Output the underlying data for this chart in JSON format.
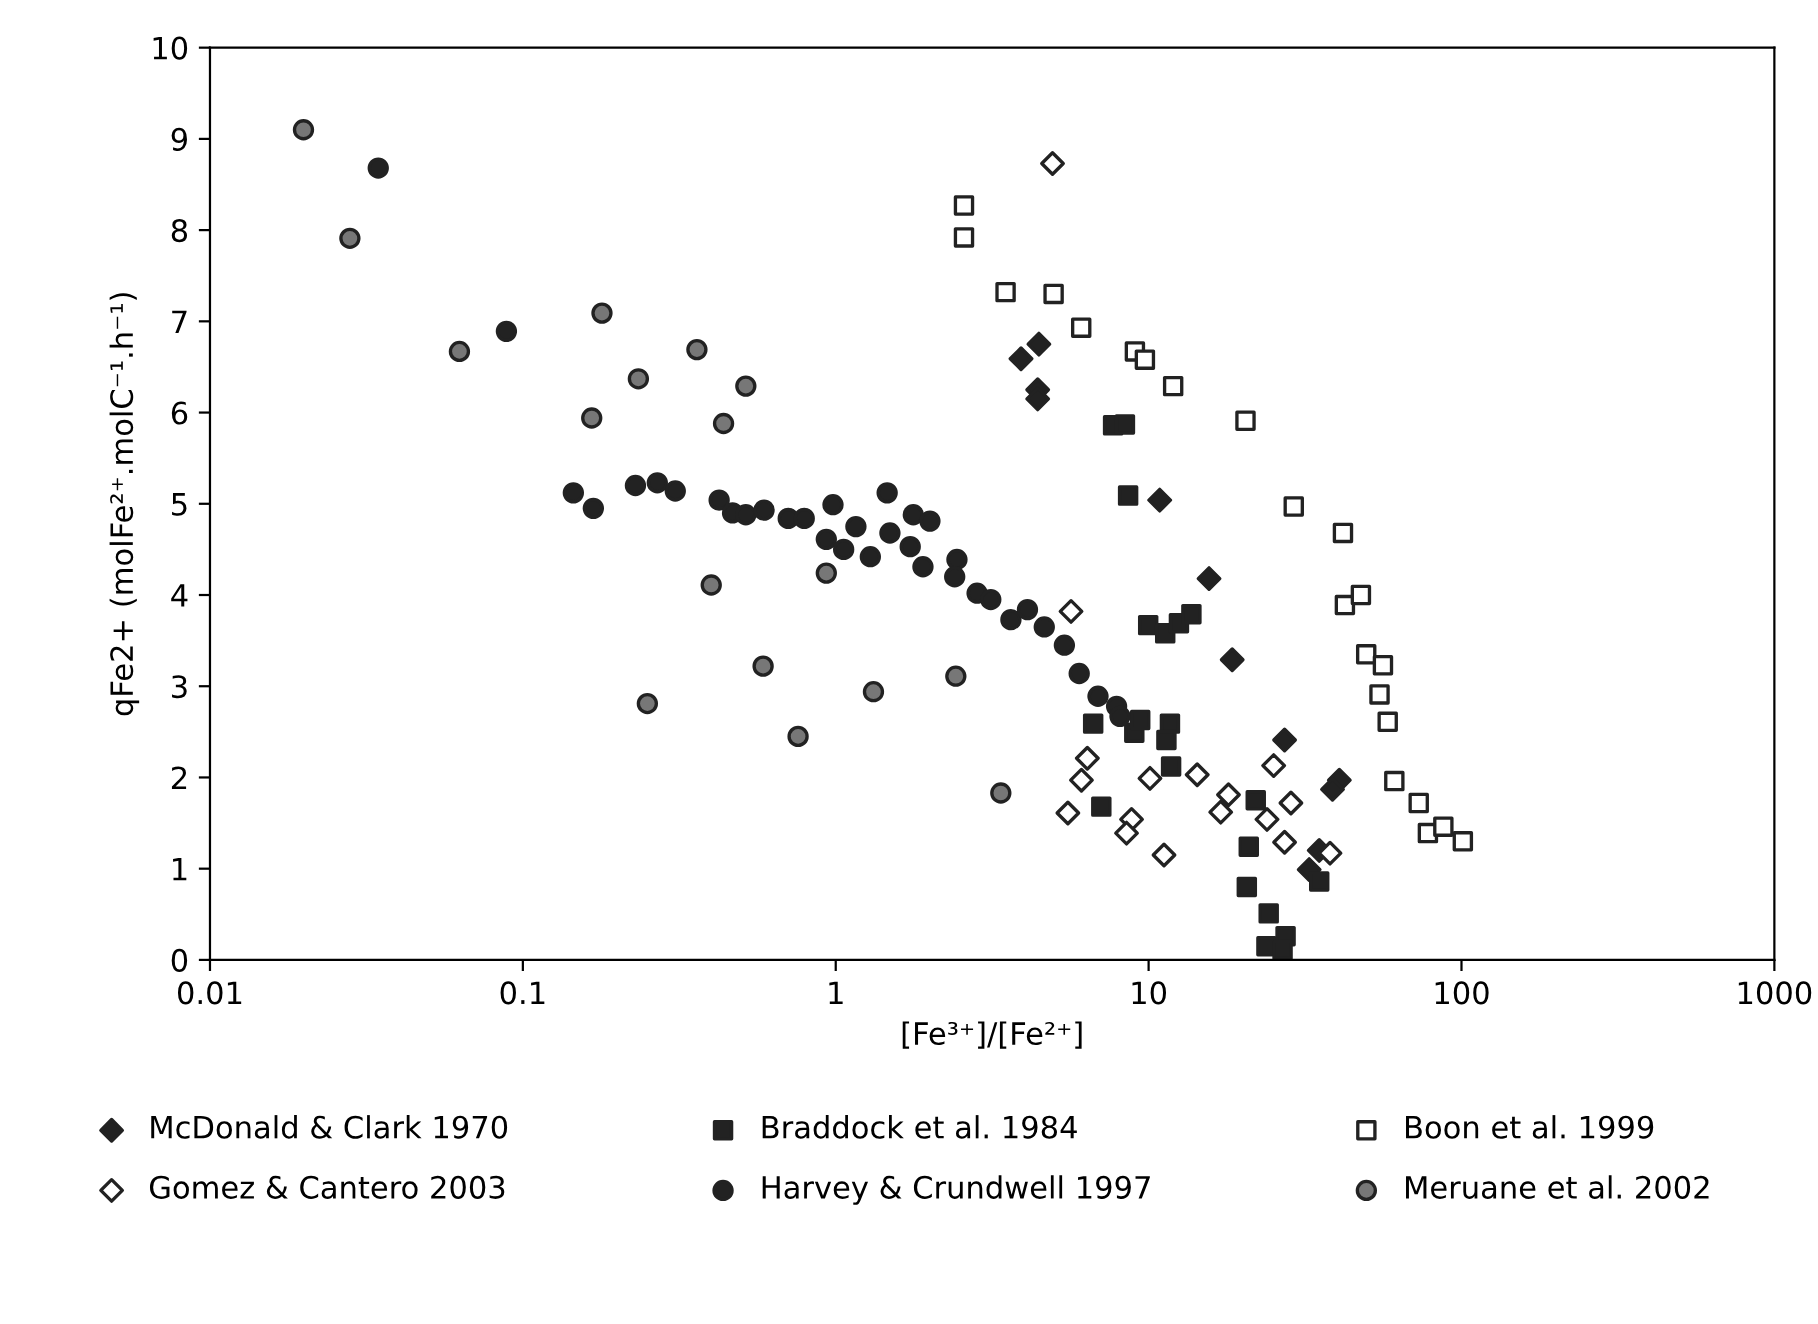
{
  "chart_data": {
    "type": "scatter",
    "xlabel": "[Fe³⁺]/[Fe²⁺]",
    "ylabel": "qFe2+ (molFe²⁺.molC⁻¹.h⁻¹)",
    "log": "x",
    "xlim": [
      0.01,
      1000
    ],
    "xticks": [
      0.01,
      0.1,
      1,
      10,
      100,
      1000
    ],
    "ylim": [
      0,
      10
    ],
    "yticks": [
      0,
      1,
      2,
      3,
      4,
      5,
      6,
      7,
      8,
      9,
      10
    ],
    "grid": false,
    "legend": "bottom",
    "series": [
      {
        "name": "McDonald & Clark 1970",
        "marker": "diamond",
        "color": "#222222",
        "x": [
          4.46,
          3.91,
          4.42,
          4.42,
          10.85,
          15.6,
          18.5,
          27.2,
          40.7,
          38.7,
          35.1,
          32.6
        ],
        "values": [
          6.75,
          6.59,
          6.25,
          6.15,
          5.04,
          4.18,
          3.29,
          2.41,
          1.97,
          1.87,
          1.2,
          0.99
        ]
      },
      {
        "name": "Braddock et al. 1984",
        "marker": "square",
        "color": "#222222",
        "x": [
          7.7,
          8.4,
          8.6,
          9.97,
          11.3,
          12.5,
          13.7,
          6.65,
          9.0,
          9.4,
          11.7,
          11.4,
          11.8,
          7.06,
          22.0,
          20.9,
          20.6,
          24.2,
          23.8,
          27.4,
          26.8,
          35.1
        ],
        "values": [
          5.86,
          5.87,
          5.09,
          3.67,
          3.58,
          3.69,
          3.79,
          2.59,
          2.49,
          2.63,
          2.59,
          2.41,
          2.12,
          1.68,
          1.75,
          1.24,
          0.8,
          0.51,
          0.15,
          0.26,
          0.11,
          0.86
        ]
      },
      {
        "name": "Boon et al. 1999",
        "marker": "square",
        "color": "#ffffff",
        "x": [
          2.57,
          2.57,
          3.49,
          4.97,
          6.09,
          9.04,
          9.73,
          11.98,
          20.4,
          29.1,
          41.8,
          42.4,
          47.7,
          49.6,
          56.1,
          54.7,
          58.1,
          61.0,
          73,
          78.1,
          87.5,
          101
        ],
        "values": [
          8.27,
          7.92,
          7.32,
          7.3,
          6.93,
          6.67,
          6.58,
          6.29,
          5.91,
          4.97,
          4.68,
          3.89,
          4.0,
          3.35,
          3.23,
          2.91,
          2.61,
          1.96,
          1.72,
          1.39,
          1.46,
          1.3
        ]
      },
      {
        "name": "Gomez & Cantero 2003",
        "marker": "diamond",
        "color": "#ffffff",
        "x": [
          4.93,
          5.65,
          6.37,
          6.1,
          5.52,
          10.1,
          14.3,
          11.2,
          8.82,
          8.5,
          18.0,
          17.0,
          25.1,
          23.9,
          28.5,
          27.2,
          38.0
        ],
        "values": [
          8.73,
          3.82,
          2.21,
          1.97,
          1.61,
          1.99,
          2.03,
          1.15,
          1.54,
          1.39,
          1.81,
          1.62,
          2.13,
          1.54,
          1.72,
          1.29,
          1.17
        ]
      },
      {
        "name": "Harvey & Crundwell 1997",
        "marker": "circle",
        "color": "#222222",
        "x": [
          0.0345,
          0.0886,
          0.145,
          0.168,
          0.229,
          0.269,
          0.307,
          0.424,
          0.468,
          0.516,
          0.59,
          0.705,
          0.793,
          0.98,
          0.933,
          1.06,
          1.16,
          1.29,
          1.46,
          1.49,
          1.77,
          1.73,
          2.0,
          1.9,
          2.44,
          2.4,
          2.83,
          3.13,
          3.63,
          4.1,
          4.64,
          5.38,
          6.0,
          6.89,
          7.9,
          8.1
        ],
        "values": [
          8.68,
          6.89,
          5.12,
          4.95,
          5.2,
          5.23,
          5.14,
          5.04,
          4.9,
          4.88,
          4.93,
          4.84,
          4.84,
          4.99,
          4.61,
          4.5,
          4.75,
          4.42,
          5.12,
          4.68,
          4.88,
          4.53,
          4.81,
          4.31,
          4.39,
          4.2,
          4.02,
          3.95,
          3.73,
          3.84,
          3.65,
          3.45,
          3.14,
          2.89,
          2.78,
          2.67
        ]
      },
      {
        "name": "Meruane et al. 2002",
        "marker": "circle",
        "color": "#777777",
        "x": [
          0.0199,
          0.028,
          0.0627,
          0.179,
          0.166,
          0.234,
          0.25,
          0.36,
          0.4,
          0.438,
          0.516,
          0.586,
          0.758,
          0.933,
          1.32,
          2.42,
          3.37
        ],
        "values": [
          9.1,
          7.91,
          6.67,
          7.09,
          5.94,
          6.37,
          2.81,
          6.69,
          4.11,
          5.88,
          6.29,
          3.22,
          2.45,
          4.24,
          2.94,
          3.11,
          1.83
        ]
      }
    ]
  }
}
